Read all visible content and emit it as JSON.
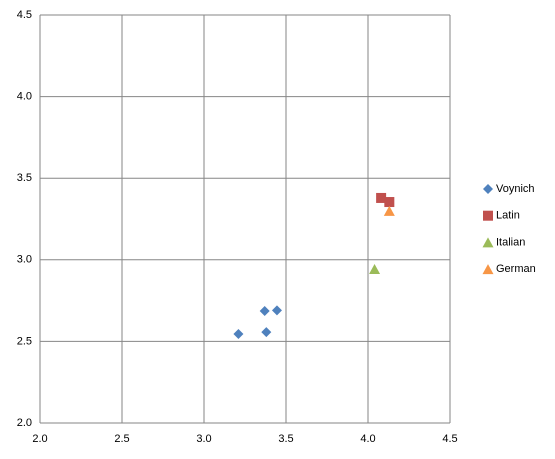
{
  "chart_data": {
    "type": "scatter",
    "series": [
      {
        "name": "Voynich",
        "color": "#4f81bd",
        "marker": "diamond",
        "x": [
          3.21,
          3.37,
          3.445,
          3.38
        ],
        "values": [
          2.545,
          2.686,
          2.69,
          2.557
        ]
      },
      {
        "name": "Latin",
        "color": "#c0504d",
        "marker": "square",
        "x": [
          4.08,
          4.13
        ],
        "values": [
          3.379,
          3.354
        ]
      },
      {
        "name": "Italian",
        "color": "#9bbb59",
        "marker": "triangle",
        "x": [
          4.04
        ],
        "values": [
          2.944
        ]
      },
      {
        "name": "German",
        "color": "#f79646",
        "marker": "triangle",
        "x": [
          4.13
        ],
        "values": [
          3.3
        ]
      }
    ],
    "xlim": [
      2,
      4.5
    ],
    "ylim": [
      2,
      4.5
    ],
    "xticks": [
      {
        "value": 2,
        "label": "2.0"
      },
      2.5,
      {
        "value": 3,
        "label": "3.0"
      },
      3.5,
      {
        "value": 4,
        "label": "4.0"
      },
      4.5
    ],
    "yticks": [
      {
        "value": 2,
        "label": "2.0"
      },
      2.5,
      {
        "value": 3,
        "label": "3.0"
      },
      3.5,
      {
        "value": 4,
        "label": "4.0"
      },
      4.5
    ],
    "grid": true,
    "legend": "right"
  }
}
